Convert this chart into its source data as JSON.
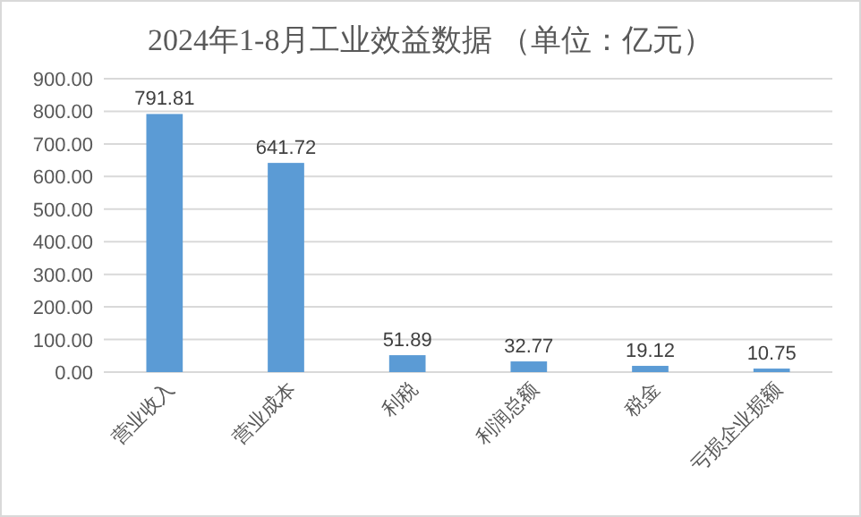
{
  "chart_data": {
    "type": "bar",
    "title": "2024年1-8月工业效益数据 （单位：亿元）",
    "categories": [
      "营业收入",
      "营业成本",
      "利税",
      "利润总额",
      "税金",
      "亏损企业损额"
    ],
    "values": [
      791.81,
      641.72,
      51.89,
      32.77,
      19.12,
      10.75
    ],
    "color": "#5b9bd5",
    "ylim": [
      0,
      900
    ],
    "yticks": [
      {
        "value": 0,
        "label": "0.00"
      },
      {
        "value": 100,
        "label": "100.00"
      },
      {
        "value": 200,
        "label": "200.00"
      },
      {
        "value": 300,
        "label": "300.00"
      },
      {
        "value": 400,
        "label": "400.00"
      },
      {
        "value": 500,
        "label": "500.00"
      },
      {
        "value": 600,
        "label": "600.00"
      },
      {
        "value": 700,
        "label": "700.00"
      },
      {
        "value": 800,
        "label": "800.00"
      },
      {
        "value": 900,
        "label": "900.00"
      }
    ],
    "grid": "y",
    "data_labels": true
  }
}
